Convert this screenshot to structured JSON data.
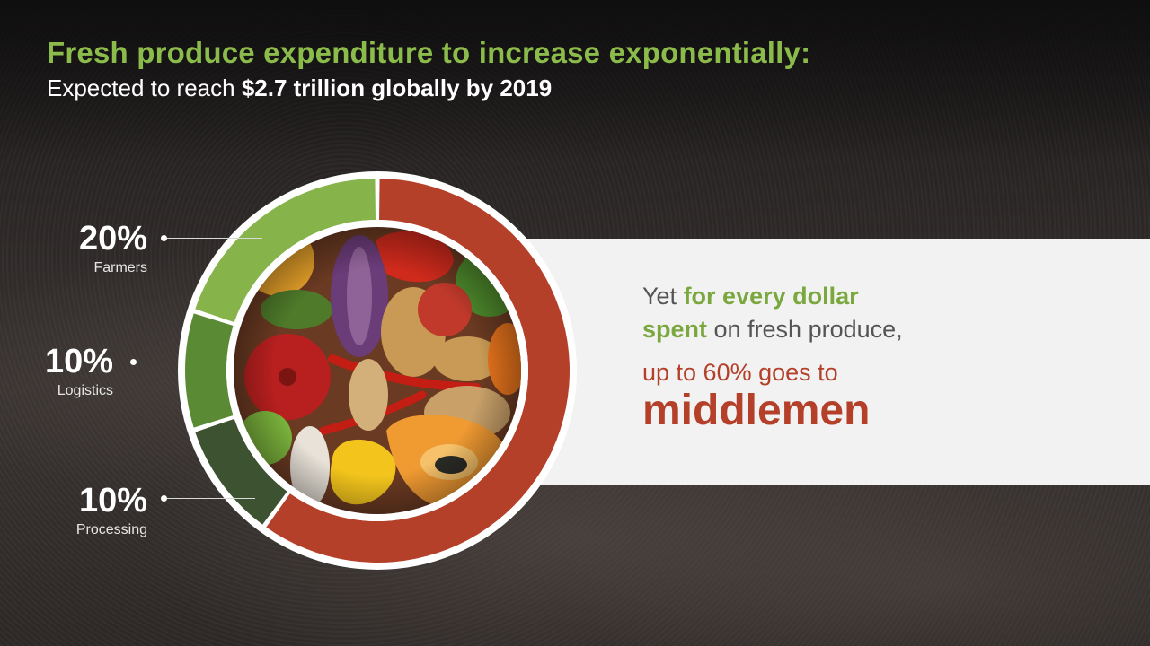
{
  "header": {
    "title": "Fresh produce expenditure to increase exponentially:",
    "subtitle_prefix": "Expected to reach ",
    "subtitle_bold": "$2.7 trillion globally by 2019"
  },
  "message": {
    "yet": "Yet ",
    "for_every_dollar": "for every dollar",
    "spent": "spent",
    "on_fresh_produce": " on fresh produce,",
    "up_to": "up to 60% goes to",
    "middlemen": "middlemen"
  },
  "labels": [
    {
      "pct": "20%",
      "name": "Farmers"
    },
    {
      "pct": "10%",
      "name": "Logistics"
    },
    {
      "pct": "10%",
      "name": "Processing"
    }
  ],
  "colors": {
    "farmers": "#86b44a",
    "logistics": "#5a8a33",
    "processing": "#3d5230",
    "middlemen": "#b5402a",
    "title_green": "#8bbb4a"
  },
  "chart_data": {
    "type": "pie",
    "categories": [
      "Farmers",
      "Logistics",
      "Processing",
      "Middlemen"
    ],
    "values": [
      20,
      10,
      10,
      60
    ],
    "unit": "%"
  }
}
